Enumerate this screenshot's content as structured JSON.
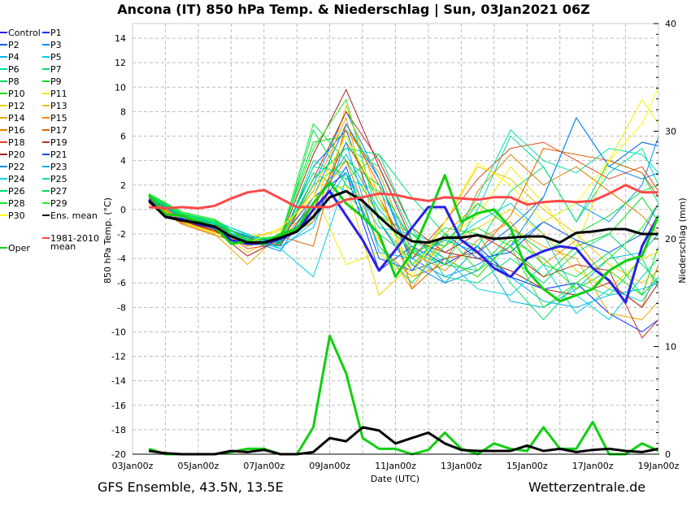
{
  "title": "Ancona  (IT)  850 hPa Temp. & Niederschlag | Sun, 03Jan2021 06Z",
  "footer_left": "GFS Ensemble, 43.5N, 13.5E",
  "footer_right": "Wetterzentrale.de",
  "chart_data": {
    "type": "line",
    "xlabel": "Date (UTC)",
    "ylabel": "850 hPa Temp. (°C)",
    "y2label": "Niederschlag (mm)",
    "xlim": [
      "03Jan 00z",
      "19Jan 00z"
    ],
    "xticks": [
      "03Jan 00z",
      "05Jan 00z",
      "07Jan 00z",
      "09Jan 00z",
      "11Jan 00z",
      "13Jan 00z",
      "15Jan 00z",
      "17Jan 00z",
      "19Jan 00z"
    ],
    "ylim": [
      -20,
      15.2
    ],
    "yticks": [
      -20,
      -18,
      -16,
      -14,
      -12,
      -10,
      -8,
      -6,
      -4,
      -2,
      0,
      2,
      4,
      6,
      8,
      10,
      12,
      14
    ],
    "y2lim": [
      0,
      40
    ],
    "y2ticks": [
      0,
      10,
      20,
      30,
      40
    ],
    "grid": true,
    "legend_placement": "left",
    "times_12h": [
      "03Jan 12z",
      "04Jan 00z",
      "04Jan 12z",
      "05Jan 00z",
      "05Jan 12z",
      "06Jan 00z",
      "06Jan 12z",
      "07Jan 00z",
      "07Jan 12z",
      "08Jan 00z",
      "08Jan 12z",
      "09Jan 00z",
      "09Jan 12z",
      "10Jan 00z",
      "10Jan 12z",
      "11Jan 00z",
      "11Jan 12z",
      "12Jan 00z",
      "12Jan 12z",
      "13Jan 00z",
      "13Jan 12z",
      "14Jan 00z",
      "14Jan 12z",
      "15Jan 00z",
      "15Jan 12z",
      "16Jan 00z",
      "16Jan 12z",
      "17Jan 00z",
      "17Jan 12z",
      "18Jan 00z",
      "18Jan 12z",
      "19Jan 00z"
    ],
    "times_24h": [
      "03Jan 12z",
      "04Jan 12z",
      "05Jan 12z",
      "06Jan 12z",
      "07Jan 12z",
      "08Jan 12z",
      "09Jan 12z",
      "10Jan 12z",
      "11Jan 12z",
      "12Jan 12z",
      "13Jan 12z",
      "14Jan 12z",
      "15Jan 12z",
      "16Jan 12z",
      "17Jan 12z",
      "18Jan 12z",
      "19Jan 00z"
    ],
    "main_series": [
      {
        "name": "Control",
        "color": "#2a1ee8",
        "width": 3,
        "temp": [
          0.8,
          -0.6,
          -0.8,
          -1.2,
          -1.5,
          -2.5,
          -2.8,
          -2.8,
          -2.4,
          -1.8,
          0.0,
          1.5,
          -0.5,
          -2.5,
          -5.0,
          -3.3,
          -1.5,
          0.2,
          0.2,
          -2.5,
          -3.5,
          -4.8,
          -5.5,
          -4.0,
          -3.4,
          -3.0,
          -3.2,
          -4.8,
          -5.8,
          -7.6,
          -3.0,
          -0.5
        ]
      },
      {
        "name": "Oper",
        "color": "#10d010",
        "width": 3,
        "temp": [
          1.2,
          -0.4,
          -0.5,
          -1.0,
          -1.4,
          -2.8,
          -2.6,
          -2.8,
          -2.0,
          -1.6,
          0.5,
          2.2,
          0.5,
          -0.6,
          -2.0,
          -5.5,
          -3.5,
          -0.5,
          2.8,
          -1.0,
          -0.3,
          0.0,
          -1.5,
          -5.0,
          -6.5,
          -7.5,
          -7.0,
          -6.5,
          -5.0,
          -4.2,
          -3.8,
          -0.5
        ],
        "precip": [
          0.5,
          0,
          0,
          0,
          0,
          0.2,
          0.5,
          0.5,
          0,
          0,
          2.5,
          11,
          7.5,
          1.5,
          0.5,
          0.5,
          0,
          0.4,
          2,
          0.5,
          0,
          1,
          0.5,
          0.3,
          2.5,
          0.5,
          0.5,
          3,
          0,
          0,
          1,
          0.3
        ]
      },
      {
        "name": "Ens. mean",
        "color": "#000000",
        "width": 3,
        "temp": [
          0.7,
          -0.6,
          -0.9,
          -1.1,
          -1.4,
          -2.2,
          -2.7,
          -2.7,
          -2.3,
          -1.8,
          -0.6,
          1.0,
          1.5,
          0.7,
          -0.6,
          -1.8,
          -2.6,
          -2.7,
          -2.3,
          -2.3,
          -2.1,
          -2.4,
          -2.3,
          -2.2,
          -2.2,
          -2.7,
          -1.9,
          -1.8,
          -1.6,
          -1.6,
          -2.0,
          -2.0
        ],
        "precip": [
          0.3,
          0.1,
          0,
          0,
          0,
          0.3,
          0.2,
          0.4,
          0,
          0,
          0.2,
          1.5,
          1.2,
          2.5,
          2.2,
          1.0,
          1.5,
          2.0,
          1.0,
          0.4,
          0.3,
          0.3,
          0.3,
          0.8,
          0.3,
          0.5,
          0.2,
          0.4,
          0.5,
          0.3,
          0.2,
          0.5
        ]
      },
      {
        "name": "1981-2010 mean",
        "name_line1": "1981-2010",
        "name_line2": "mean",
        "color": "#ff4848",
        "width": 3,
        "temp": [
          0.2,
          0.1,
          0.2,
          0.1,
          0.3,
          0.9,
          1.4,
          1.6,
          0.9,
          0.2,
          0.2,
          0.2,
          0.8,
          1.0,
          1.3,
          1.2,
          0.9,
          0.7,
          1.0,
          0.9,
          0.8,
          1.0,
          1.0,
          0.4,
          0.6,
          0.7,
          0.6,
          0.7,
          1.3,
          2.0,
          1.4,
          1.4
        ]
      }
    ],
    "members": [
      {
        "name": "P1",
        "color": "#0030ff",
        "temp": [
          0.6,
          -0.8,
          -1.5,
          -2.6,
          -2.4,
          1.0,
          3.0,
          -5.0,
          -3.0,
          -4.5,
          -3.0,
          -5.5,
          -6.5,
          -6.0,
          -8.5,
          -10.0,
          -9.0
        ]
      },
      {
        "name": "P2",
        "color": "#0060f0",
        "temp": [
          0.9,
          -0.5,
          -1.2,
          -2.2,
          -2.8,
          3.5,
          6.5,
          -1.0,
          -5.0,
          -4.0,
          -3.5,
          -1.5,
          1.0,
          7.5,
          3.5,
          5.5,
          5.2
        ]
      },
      {
        "name": "P3",
        "color": "#0090ff",
        "temp": [
          1.0,
          -0.6,
          -1.1,
          -2.4,
          -2.6,
          2.0,
          8.0,
          2.5,
          -4.0,
          -5.5,
          -4.5,
          -3.0,
          -1.0,
          0.5,
          -1.0,
          2.0,
          6.0
        ]
      },
      {
        "name": "P4",
        "color": "#00b4e6",
        "temp": [
          1.1,
          -0.4,
          -1.0,
          -2.0,
          -2.9,
          0.5,
          4.5,
          0.0,
          -3.0,
          -6.0,
          -3.0,
          -7.5,
          -8.0,
          -6.5,
          -4.0,
          -3.5,
          -2.0
        ]
      },
      {
        "name": "P5",
        "color": "#00d2e0",
        "temp": [
          1.2,
          -0.7,
          -1.4,
          -2.5,
          -3.2,
          -1.0,
          3.0,
          -1.5,
          -2.0,
          -3.0,
          -1.0,
          0.5,
          -2.0,
          -7.0,
          -9.0,
          -5.5,
          -4.0
        ]
      },
      {
        "name": "P6",
        "color": "#00e0a0",
        "temp": [
          1.0,
          -0.3,
          -0.9,
          -2.1,
          -2.5,
          2.5,
          5.0,
          3.5,
          -2.0,
          -4.5,
          0.0,
          6.0,
          3.5,
          -1.0,
          3.0,
          5.0,
          2.0
        ]
      },
      {
        "name": "P7",
        "color": "#00e070",
        "temp": [
          1.1,
          -0.5,
          -1.2,
          -2.7,
          -2.9,
          4.0,
          2.5,
          4.5,
          1.0,
          -2.0,
          -3.0,
          1.5,
          3.5,
          -1.0,
          4.0,
          3.0,
          0.5
        ]
      },
      {
        "name": "P8",
        "color": "#00e060",
        "temp": [
          0.9,
          -0.6,
          -1.3,
          -2.9,
          -2.3,
          3.0,
          1.5,
          -2.0,
          -4.0,
          -1.5,
          -2.0,
          -6.0,
          -9.0,
          -6.0,
          -7.0,
          -4.0,
          -6.5
        ]
      },
      {
        "name": "P9",
        "color": "#00e020",
        "temp": [
          1.3,
          -0.2,
          -0.8,
          -2.6,
          -2.1,
          5.5,
          6.0,
          0.5,
          -3.5,
          -2.5,
          -1.5,
          -3.0,
          -5.5,
          -3.0,
          -2.0,
          1.0,
          -1.0
        ]
      },
      {
        "name": "P10",
        "color": "#20e000",
        "temp": [
          1.2,
          -0.4,
          -1.1,
          -2.8,
          -2.7,
          2.0,
          4.0,
          -0.5,
          -2.0,
          -4.0,
          -5.5,
          -2.5,
          -4.0,
          -6.5,
          -5.0,
          -7.0,
          -3.0
        ]
      },
      {
        "name": "P11",
        "color": "#f0f000",
        "temp": [
          0.8,
          -0.9,
          -1.8,
          -2.2,
          -1.8,
          1.5,
          -4.5,
          -3.5,
          -6.0,
          -2.5,
          -0.5,
          3.5,
          0.5,
          -3.0,
          4.0,
          9.0,
          7.0
        ]
      },
      {
        "name": "P12",
        "color": "#f0d400",
        "temp": [
          0.7,
          -1.0,
          -1.6,
          -3.5,
          -2.2,
          1.0,
          2.0,
          -7.0,
          -4.5,
          -3.0,
          -1.5,
          0.0,
          -2.0,
          -5.0,
          -6.5,
          -4.0,
          -3.5
        ]
      },
      {
        "name": "P13",
        "color": "#f0c000",
        "temp": [
          0.9,
          -0.8,
          -1.9,
          -2.4,
          -1.6,
          -0.5,
          8.5,
          1.0,
          -5.0,
          -1.0,
          3.5,
          2.5,
          0.0,
          -2.0,
          -4.5,
          -6.0,
          -5.0
        ]
      },
      {
        "name": "P14",
        "color": "#f0a800",
        "temp": [
          0.6,
          -1.1,
          -2.0,
          -4.5,
          -2.0,
          1.5,
          7.5,
          -2.5,
          -6.5,
          -2.0,
          0.5,
          -1.5,
          -3.0,
          -4.0,
          -8.5,
          -9.0,
          -7.5
        ]
      },
      {
        "name": "P15",
        "color": "#f09000",
        "temp": [
          0.8,
          -0.9,
          -1.7,
          -3.0,
          -2.4,
          -1.0,
          6.5,
          3.0,
          -3.5,
          -5.0,
          -2.5,
          -1.0,
          -4.5,
          -2.5,
          -6.0,
          -8.0,
          -4.5
        ]
      },
      {
        "name": "P16",
        "color": "#e08000",
        "temp": [
          0.5,
          -1.2,
          -2.1,
          -2.8,
          -2.6,
          0.5,
          4.0,
          -3.0,
          -5.5,
          -4.5,
          1.5,
          4.5,
          2.0,
          3.5,
          1.5,
          -0.5,
          -2.0
        ]
      },
      {
        "name": "P17",
        "color": "#e06400",
        "temp": [
          0.7,
          -1.0,
          -1.8,
          -2.7,
          -2.2,
          -3.0,
          7.0,
          2.0,
          -6.5,
          -4.0,
          -3.5,
          -0.5,
          5.0,
          4.5,
          4.0,
          3.0,
          1.0
        ]
      },
      {
        "name": "P18",
        "color": "#e04820",
        "temp": [
          0.6,
          -1.1,
          -1.5,
          -3.2,
          -2.8,
          0.0,
          5.5,
          1.0,
          -4.0,
          -1.0,
          2.5,
          5.0,
          5.5,
          4.0,
          2.5,
          3.5,
          1.5
        ]
      },
      {
        "name": "P19",
        "color": "#c83020",
        "temp": [
          0.9,
          -0.7,
          -1.3,
          -2.3,
          -3.0,
          2.5,
          8.0,
          4.0,
          -1.5,
          -3.5,
          -2.0,
          -3.5,
          -5.5,
          -4.5,
          -5.0,
          -10.5,
          -9.0
        ]
      },
      {
        "name": "P20",
        "color": "#a82020",
        "temp": [
          0.8,
          -1.0,
          -1.7,
          -3.8,
          -2.4,
          4.5,
          9.8,
          3.5,
          -2.5,
          -3.5,
          -4.0,
          -5.0,
          -6.5,
          -7.0,
          -6.0,
          -8.0,
          -6.0
        ]
      },
      {
        "name": "P21",
        "color": "#0050f0",
        "temp": [
          1.0,
          -0.6,
          -1.2,
          -2.2,
          -2.7,
          -0.5,
          3.5,
          -4.0,
          -5.0,
          -2.0,
          -4.0,
          -3.5,
          -1.0,
          -2.5,
          -3.5,
          -2.0,
          0.5
        ]
      },
      {
        "name": "P22",
        "color": "#0088f0",
        "temp": [
          1.1,
          -0.5,
          -1.4,
          -2.5,
          -3.4,
          1.0,
          7.0,
          2.5,
          -4.5,
          -6.0,
          -5.0,
          -3.0,
          1.0,
          7.5,
          3.5,
          2.5,
          3.0
        ]
      },
      {
        "name": "P23",
        "color": "#00b0f0",
        "temp": [
          1.0,
          -0.7,
          -1.6,
          -2.6,
          -3.0,
          -1.5,
          5.5,
          -3.5,
          -4.0,
          -2.5,
          -3.5,
          -5.5,
          -7.5,
          -8.0,
          -7.0,
          -6.5,
          -6.0
        ]
      },
      {
        "name": "P24",
        "color": "#00d4e4",
        "temp": [
          1.2,
          -0.3,
          -1.0,
          -2.0,
          -3.2,
          -5.5,
          2.5,
          1.5,
          -2.5,
          -4.0,
          -6.5,
          -7.0,
          -4.5,
          -8.5,
          -6.5,
          -7.5,
          -5.5
        ]
      },
      {
        "name": "P25",
        "color": "#00e0a4",
        "temp": [
          1.1,
          -0.4,
          -1.1,
          -2.3,
          -2.5,
          3.5,
          3.0,
          -3.0,
          -6.0,
          -3.0,
          1.0,
          6.5,
          4.0,
          3.0,
          5.0,
          4.5,
          3.0
        ]
      },
      {
        "name": "P26",
        "color": "#00e078",
        "temp": [
          1.0,
          -0.5,
          -1.2,
          -2.4,
          -2.8,
          2.5,
          5.0,
          4.5,
          -1.5,
          -5.5,
          -6.0,
          -4.0,
          -6.0,
          -3.5,
          -2.0,
          -4.5,
          -6.0
        ]
      },
      {
        "name": "P27",
        "color": "#00e050",
        "temp": [
          1.1,
          -0.6,
          -1.3,
          -2.7,
          -2.6,
          6.5,
          2.0,
          -0.5,
          -3.5,
          -4.5,
          -5.0,
          -2.0,
          -4.5,
          -5.5,
          -3.5,
          -7.0,
          -5.5
        ]
      },
      {
        "name": "P28",
        "color": "#10e030",
        "temp": [
          1.2,
          -0.4,
          -1.0,
          -2.5,
          -2.3,
          7.0,
          4.0,
          2.0,
          -2.5,
          -3.0,
          0.5,
          -1.5,
          -3.5,
          -2.0,
          -0.5,
          1.5,
          2.0
        ]
      },
      {
        "name": "P29",
        "color": "#20f020",
        "temp": [
          1.3,
          -0.3,
          -0.9,
          -2.6,
          -2.2,
          5.0,
          9.0,
          -1.0,
          -4.5,
          -2.0,
          -5.0,
          -3.0,
          -8.0,
          -6.0,
          -4.0,
          -1.5,
          0.5
        ]
      },
      {
        "name": "P30",
        "color": "#ffff00",
        "temp": [
          0.7,
          -1.0,
          -1.9,
          -2.8,
          -1.5,
          1.0,
          6.0,
          1.0,
          -5.5,
          -1.0,
          3.8,
          2.0,
          -1.0,
          0.5,
          4.0,
          7.0,
          10.0
        ]
      }
    ]
  }
}
